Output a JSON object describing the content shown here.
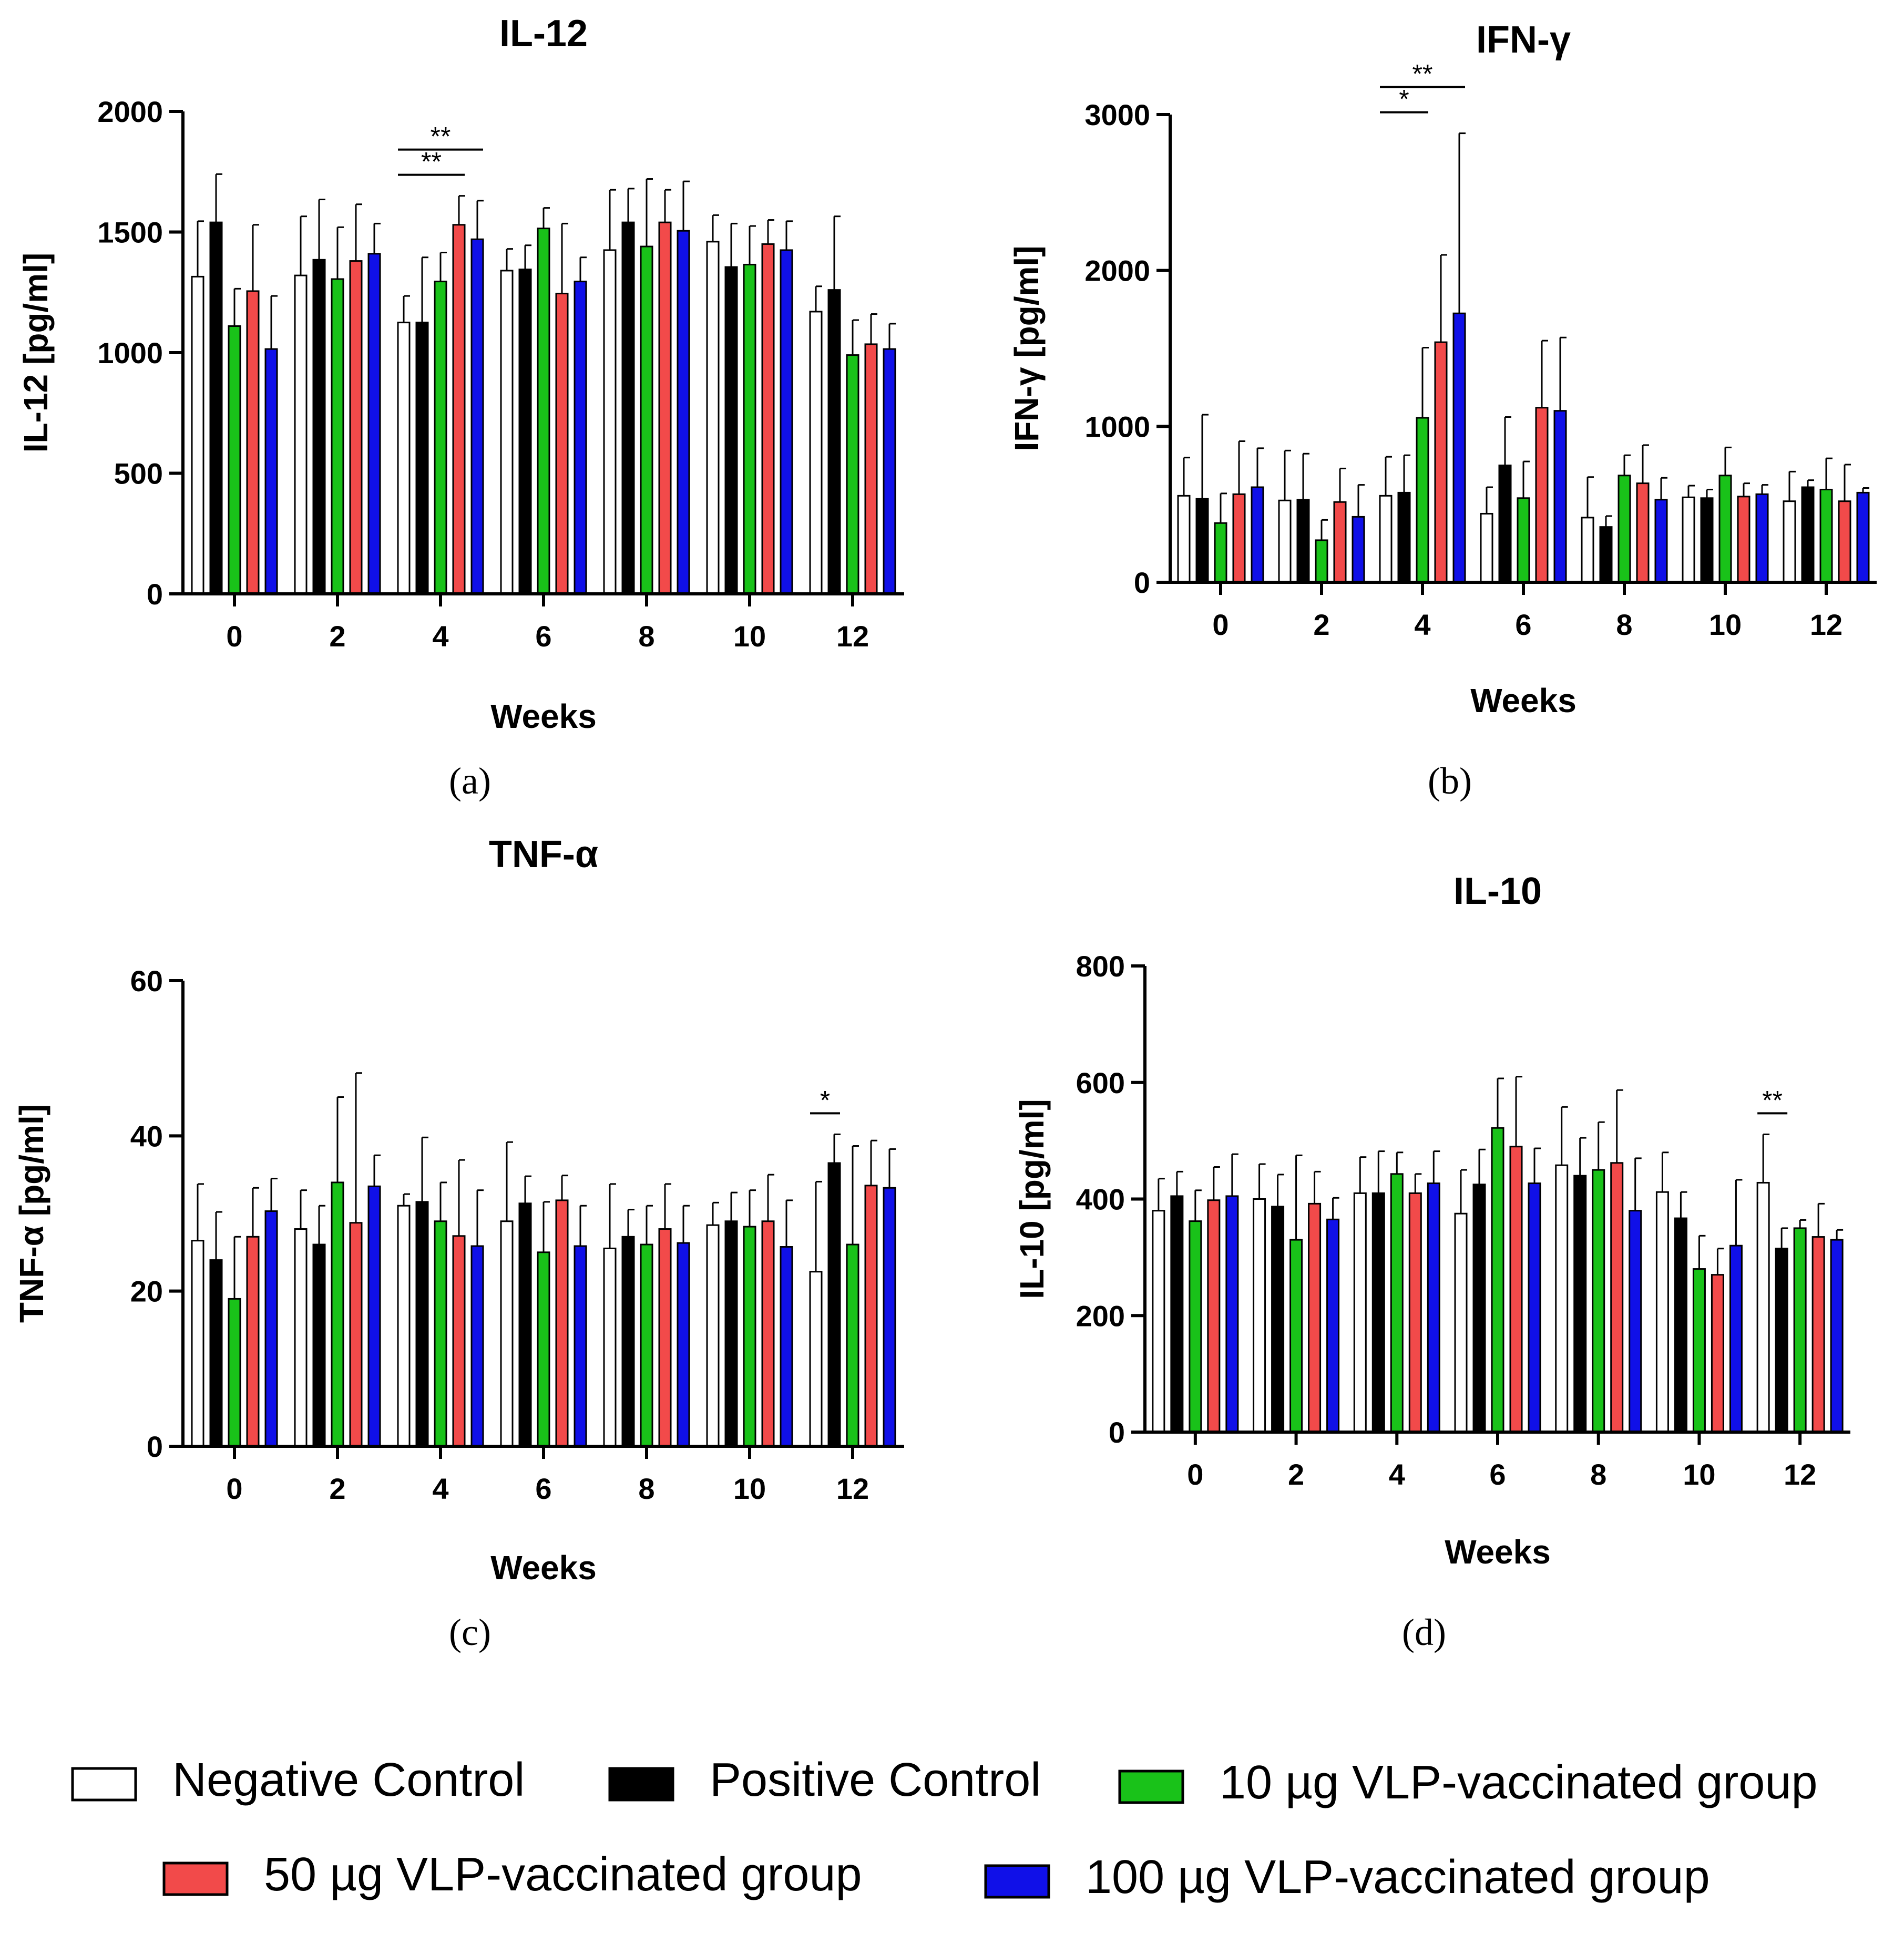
{
  "legend": [
    {
      "label": "Negative Control",
      "color": "#ffffff"
    },
    {
      "label": "Positive Control",
      "color": "#000000"
    },
    {
      "label": "10 µg VLP-vaccinated group",
      "color": "#19c219"
    },
    {
      "label": "50 µg VLP-vaccinated group",
      "color": "#f24a4a"
    },
    {
      "label": "100 µg VLP-vaccinated group",
      "color": "#1010e8"
    }
  ],
  "chart_data": [
    {
      "type": "bar",
      "title": "IL-12",
      "panel_label": "(a)",
      "xlabel": "Weeks",
      "ylabel": "IL-12 [pg/ml]",
      "categories": [
        "0",
        "2",
        "4",
        "6",
        "8",
        "10",
        "12"
      ],
      "ylim": [
        0,
        2000
      ],
      "yticks": [
        "0",
        "500",
        "1000",
        "1500",
        "2000"
      ],
      "series": [
        {
          "name": "Negative Control",
          "values": [
            1315,
            1320,
            1125,
            1340,
            1425,
            1460,
            1170
          ],
          "errors": [
            230,
            245,
            110,
            90,
            250,
            110,
            105
          ]
        },
        {
          "name": "Positive Control",
          "values": [
            1540,
            1385,
            1125,
            1345,
            1540,
            1355,
            1260
          ],
          "errors": [
            200,
            250,
            270,
            100,
            140,
            180,
            305
          ]
        },
        {
          "name": "10 µg VLP-vaccinated group",
          "values": [
            1110,
            1305,
            1295,
            1515,
            1440,
            1365,
            990
          ],
          "errors": [
            155,
            215,
            120,
            85,
            280,
            160,
            145
          ]
        },
        {
          "name": "50 µg VLP-vaccinated group",
          "values": [
            1255,
            1380,
            1530,
            1245,
            1540,
            1450,
            1035
          ],
          "errors": [
            275,
            235,
            120,
            290,
            135,
            100,
            125
          ]
        },
        {
          "name": "100 µg VLP-vaccinated group",
          "values": [
            1015,
            1410,
            1470,
            1295,
            1505,
            1425,
            1015
          ],
          "errors": [
            220,
            125,
            160,
            100,
            205,
            120,
            105
          ]
        }
      ],
      "annotations": [
        {
          "text": "**",
          "category": "4",
          "from_series": 0,
          "to_series": 3
        },
        {
          "text": "**",
          "category": "4",
          "from_series": 0,
          "to_series": 4
        }
      ]
    },
    {
      "type": "bar",
      "title": "IFN-γ",
      "panel_label": "(b)",
      "xlabel": "Weeks",
      "ylabel": "IFN-γ [pg/ml]",
      "categories": [
        "0",
        "2",
        "4",
        "6",
        "8",
        "10",
        "12"
      ],
      "ylim": [
        0,
        3000
      ],
      "yticks": [
        "0",
        "1000",
        "2000",
        "3000"
      ],
      "series": [
        {
          "name": "Negative Control",
          "values": [
            555,
            525,
            555,
            440,
            415,
            545,
            520
          ],
          "errors": [
            245,
            320,
            250,
            170,
            260,
            75,
            190
          ]
        },
        {
          "name": "Positive Control",
          "values": [
            535,
            530,
            575,
            750,
            355,
            540,
            610
          ],
          "errors": [
            540,
            295,
            240,
            310,
            70,
            55,
            45
          ]
        },
        {
          "name": "10 µg VLP-vaccinated group",
          "values": [
            380,
            270,
            1055,
            540,
            685,
            685,
            595
          ],
          "errors": [
            190,
            130,
            450,
            235,
            130,
            180,
            200
          ]
        },
        {
          "name": "50 µg VLP-vaccinated group",
          "values": [
            565,
            515,
            1540,
            1120,
            635,
            550,
            520
          ],
          "errors": [
            340,
            215,
            560,
            430,
            245,
            85,
            235
          ]
        },
        {
          "name": "100 µg VLP-vaccinated group",
          "values": [
            610,
            420,
            1725,
            1100,
            530,
            565,
            575
          ],
          "errors": [
            250,
            205,
            1155,
            470,
            140,
            60,
            30
          ]
        }
      ],
      "annotations": [
        {
          "text": "*",
          "category": "4",
          "from_series": 0,
          "to_series": 2
        },
        {
          "text": "**",
          "category": "4",
          "from_series": 0,
          "to_series": 4
        }
      ]
    },
    {
      "type": "bar",
      "title": "TNF-α",
      "panel_label": "(c)",
      "xlabel": "Weeks",
      "ylabel": "TNF-α [pg/ml]",
      "categories": [
        "0",
        "2",
        "4",
        "6",
        "8",
        "10",
        "12"
      ],
      "ylim": [
        0,
        60
      ],
      "yticks": [
        "0",
        "20",
        "40",
        "60"
      ],
      "series": [
        {
          "name": "Negative Control",
          "values": [
            26.5,
            28,
            31,
            29,
            25.5,
            28.5,
            22.5
          ],
          "errors": [
            7.3,
            5,
            1.5,
            10.2,
            8.3,
            2.9,
            11.6
          ]
        },
        {
          "name": "Positive Control",
          "values": [
            24,
            26,
            31.5,
            31.3,
            27,
            29,
            36.5
          ],
          "errors": [
            6.2,
            5,
            8.3,
            3.5,
            3.5,
            3.7,
            3.7
          ]
        },
        {
          "name": "10 µg VLP-vaccinated group",
          "values": [
            19,
            34,
            29,
            25,
            26,
            28.3,
            26
          ],
          "errors": [
            8,
            11,
            5,
            6.5,
            5,
            4.7,
            12.7
          ]
        },
        {
          "name": "50 µg VLP-vaccinated group",
          "values": [
            27,
            28.8,
            27.1,
            31.7,
            28,
            29,
            33.6
          ],
          "errors": [
            6.3,
            19.3,
            9.8,
            3.2,
            5.8,
            6,
            5.8
          ]
        },
        {
          "name": "100 µg VLP-vaccinated group",
          "values": [
            30.3,
            33.5,
            25.8,
            25.8,
            26.2,
            25.7,
            33.3
          ],
          "errors": [
            4.2,
            4,
            7.2,
            5.2,
            4.8,
            6,
            5
          ]
        }
      ],
      "annotations": [
        {
          "text": "*",
          "category": "12",
          "from_series": 0,
          "to_series": 1
        }
      ]
    },
    {
      "type": "bar",
      "title": "IL-10",
      "panel_label": "(d)",
      "xlabel": "Weeks",
      "ylabel": "IL-10 [pg/ml]",
      "categories": [
        "0",
        "2",
        "4",
        "6",
        "8",
        "10",
        "12"
      ],
      "ylim": [
        0,
        800
      ],
      "yticks": [
        "0",
        "200",
        "400",
        "600",
        "800"
      ],
      "series": [
        {
          "name": "Negative Control",
          "values": [
            380,
            400,
            410,
            375,
            458,
            412,
            428
          ],
          "errors": [
            55,
            60,
            62,
            75,
            100,
            68,
            83
          ]
        },
        {
          "name": "Positive Control",
          "values": [
            405,
            387,
            410,
            425,
            440,
            367,
            315
          ],
          "errors": [
            42,
            55,
            72,
            60,
            65,
            45,
            35
          ]
        },
        {
          "name": "10 µg VLP-vaccinated group",
          "values": [
            362,
            330,
            443,
            522,
            450,
            280,
            350
          ],
          "errors": [
            53,
            145,
            37,
            85,
            82,
            57,
            14
          ]
        },
        {
          "name": "50 µg VLP-vaccinated group",
          "values": [
            398,
            392,
            410,
            490,
            462,
            270,
            335
          ],
          "errors": [
            57,
            55,
            33,
            120,
            125,
            45,
            57
          ]
        },
        {
          "name": "100 µg VLP-vaccinated group",
          "values": [
            405,
            365,
            427,
            427,
            380,
            320,
            330
          ],
          "errors": [
            72,
            37,
            55,
            60,
            90,
            113,
            17
          ]
        }
      ],
      "annotations": [
        {
          "text": "**",
          "category": "12",
          "from_series": 0,
          "to_series": 1
        }
      ]
    }
  ]
}
